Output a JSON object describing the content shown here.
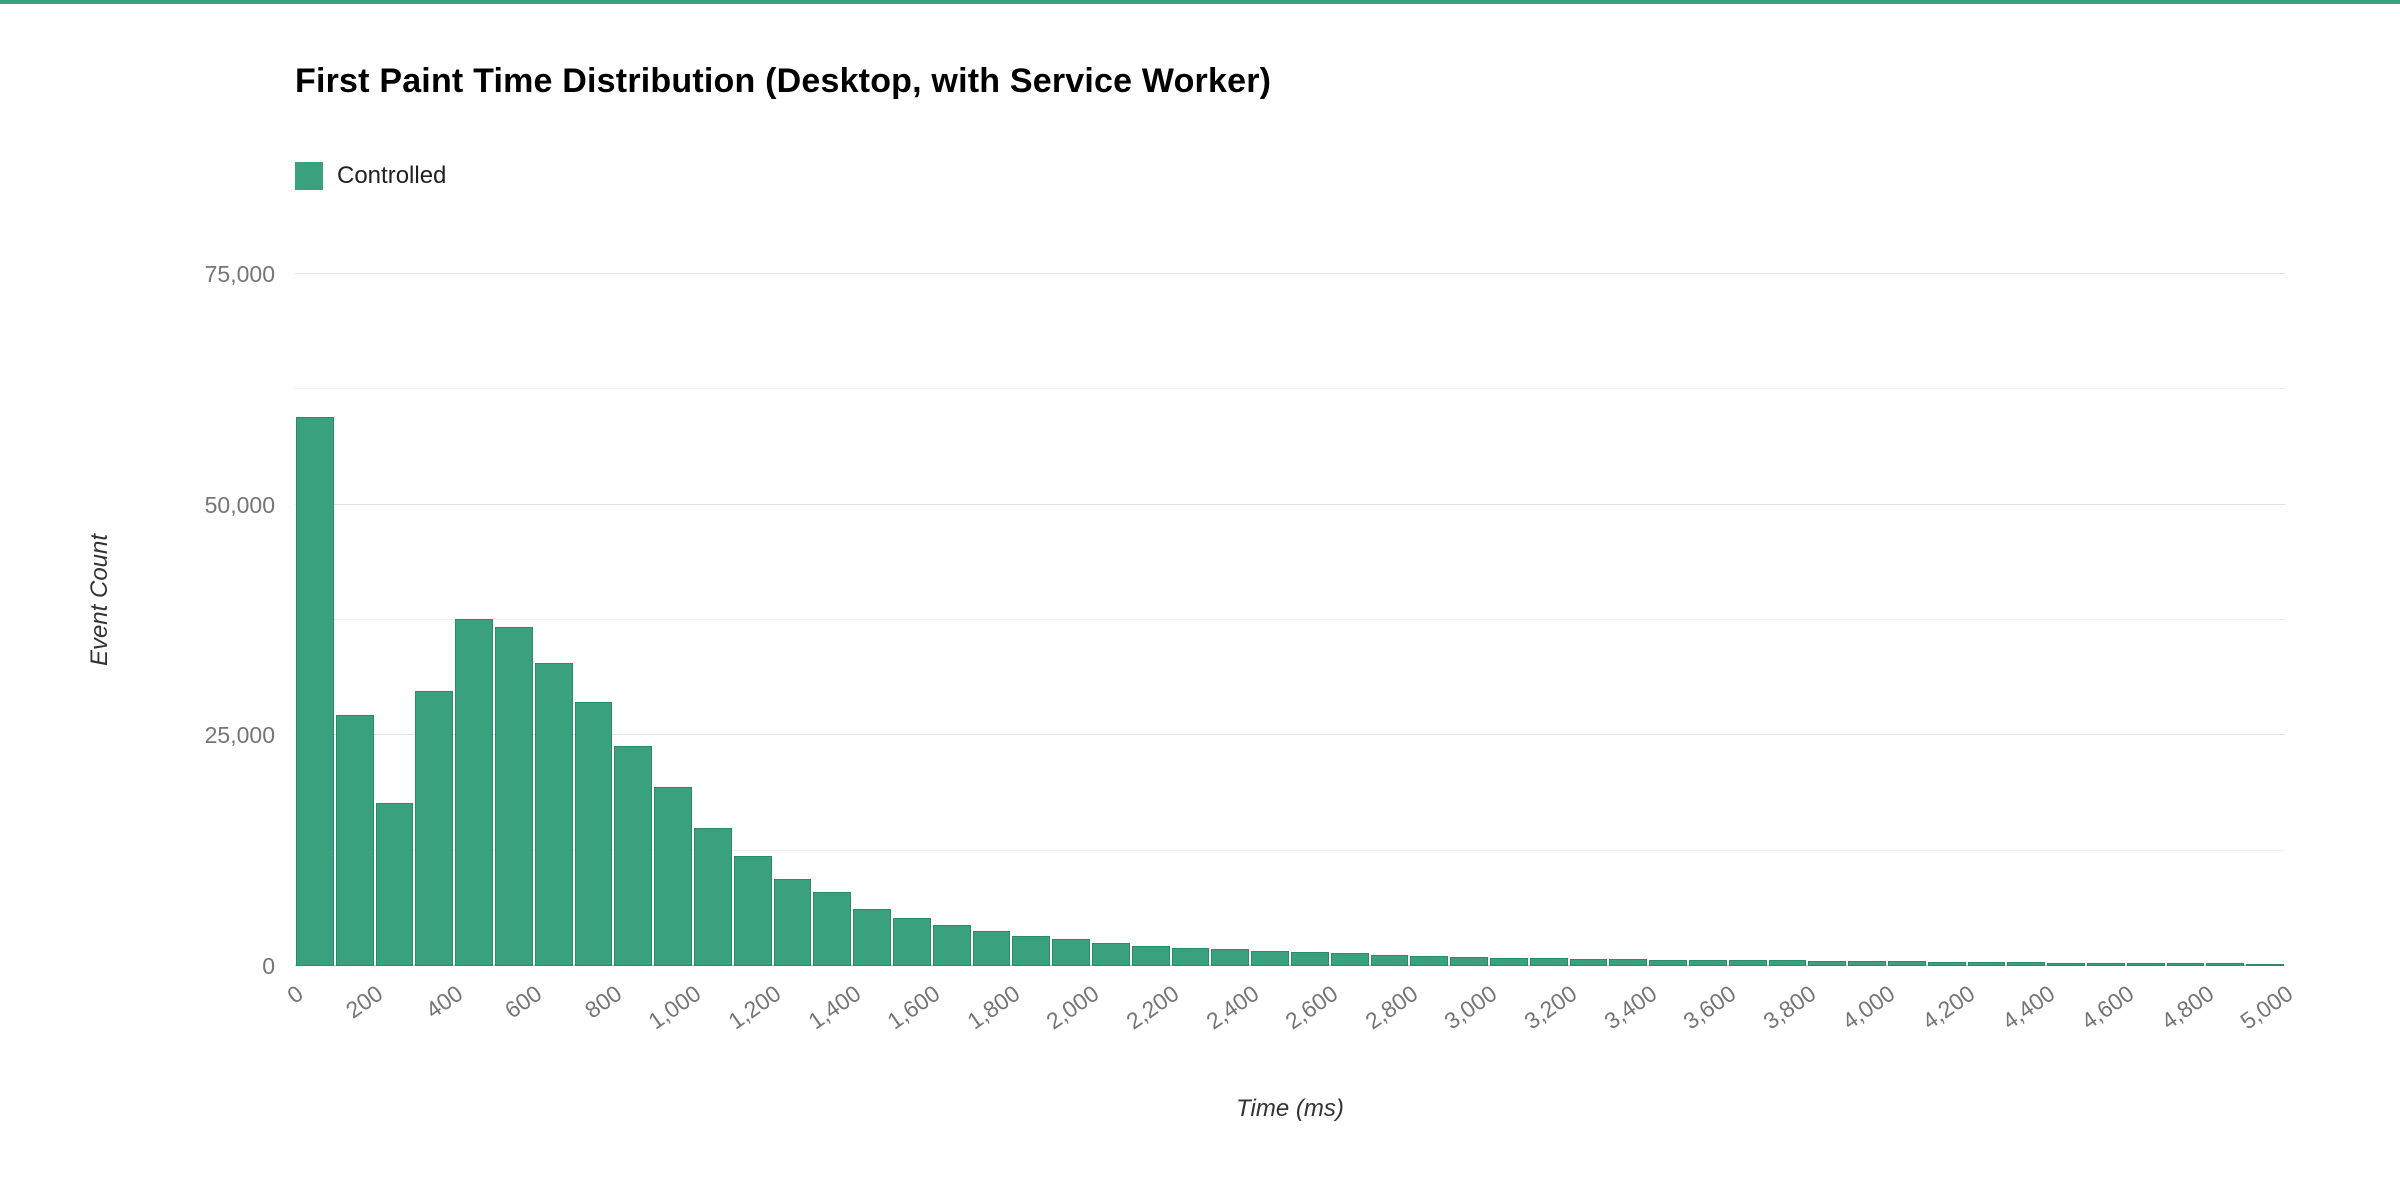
{
  "page": {
    "accent_color": "#3aa17e",
    "background": "#ffffff"
  },
  "chart_data": {
    "type": "histogram",
    "title": "First Paint Time Distribution (Desktop, with Service Worker)",
    "xlabel": "Time (ms)",
    "ylabel": "Event Count",
    "legend": {
      "position": "top",
      "entries": [
        {
          "label": "Controlled",
          "color": "#3aa17e"
        }
      ]
    },
    "bar_border": "#2d8a67",
    "bin_width_ms": 100,
    "x_range": [
      0,
      5000
    ],
    "ylim": [
      0,
      80000
    ],
    "grid": "on",
    "y_ticks": [
      {
        "value": 0,
        "label": "0"
      },
      {
        "value": 25000,
        "label": "25,000"
      },
      {
        "value": 50000,
        "label": "50,000"
      },
      {
        "value": 75000,
        "label": "75,000"
      }
    ],
    "y_minor_ticks": [
      12500,
      37500,
      62500
    ],
    "x_tick_values": [
      0,
      200,
      400,
      600,
      800,
      1000,
      1200,
      1400,
      1600,
      1800,
      2000,
      2200,
      2400,
      2600,
      2800,
      3000,
      3200,
      3400,
      3600,
      3800,
      4000,
      4200,
      4400,
      4600,
      4800,
      5000
    ],
    "x_tick_labels": [
      "0",
      "200",
      "400",
      "600",
      "800",
      "1,000",
      "1,200",
      "1,400",
      "1,600",
      "1,800",
      "2,000",
      "2,200",
      "2,400",
      "2,600",
      "2,800",
      "3,000",
      "3,200",
      "3,400",
      "3,600",
      "3,800",
      "4,000",
      "4,200",
      "4,400",
      "4,600",
      "4,800",
      "5,000"
    ],
    "values": [
      59500,
      27200,
      17700,
      29800,
      37600,
      36700,
      32900,
      28600,
      23900,
      19400,
      15000,
      11900,
      9400,
      8000,
      6200,
      5200,
      4400,
      3800,
      3300,
      2900,
      2500,
      2200,
      2000,
      1800,
      1600,
      1500,
      1400,
      1200,
      1100,
      1000,
      900,
      850,
      800,
      750,
      700,
      650,
      600,
      600,
      550,
      500,
      500,
      450,
      400,
      400,
      350,
      350,
      300,
      300,
      300,
      250
    ]
  }
}
